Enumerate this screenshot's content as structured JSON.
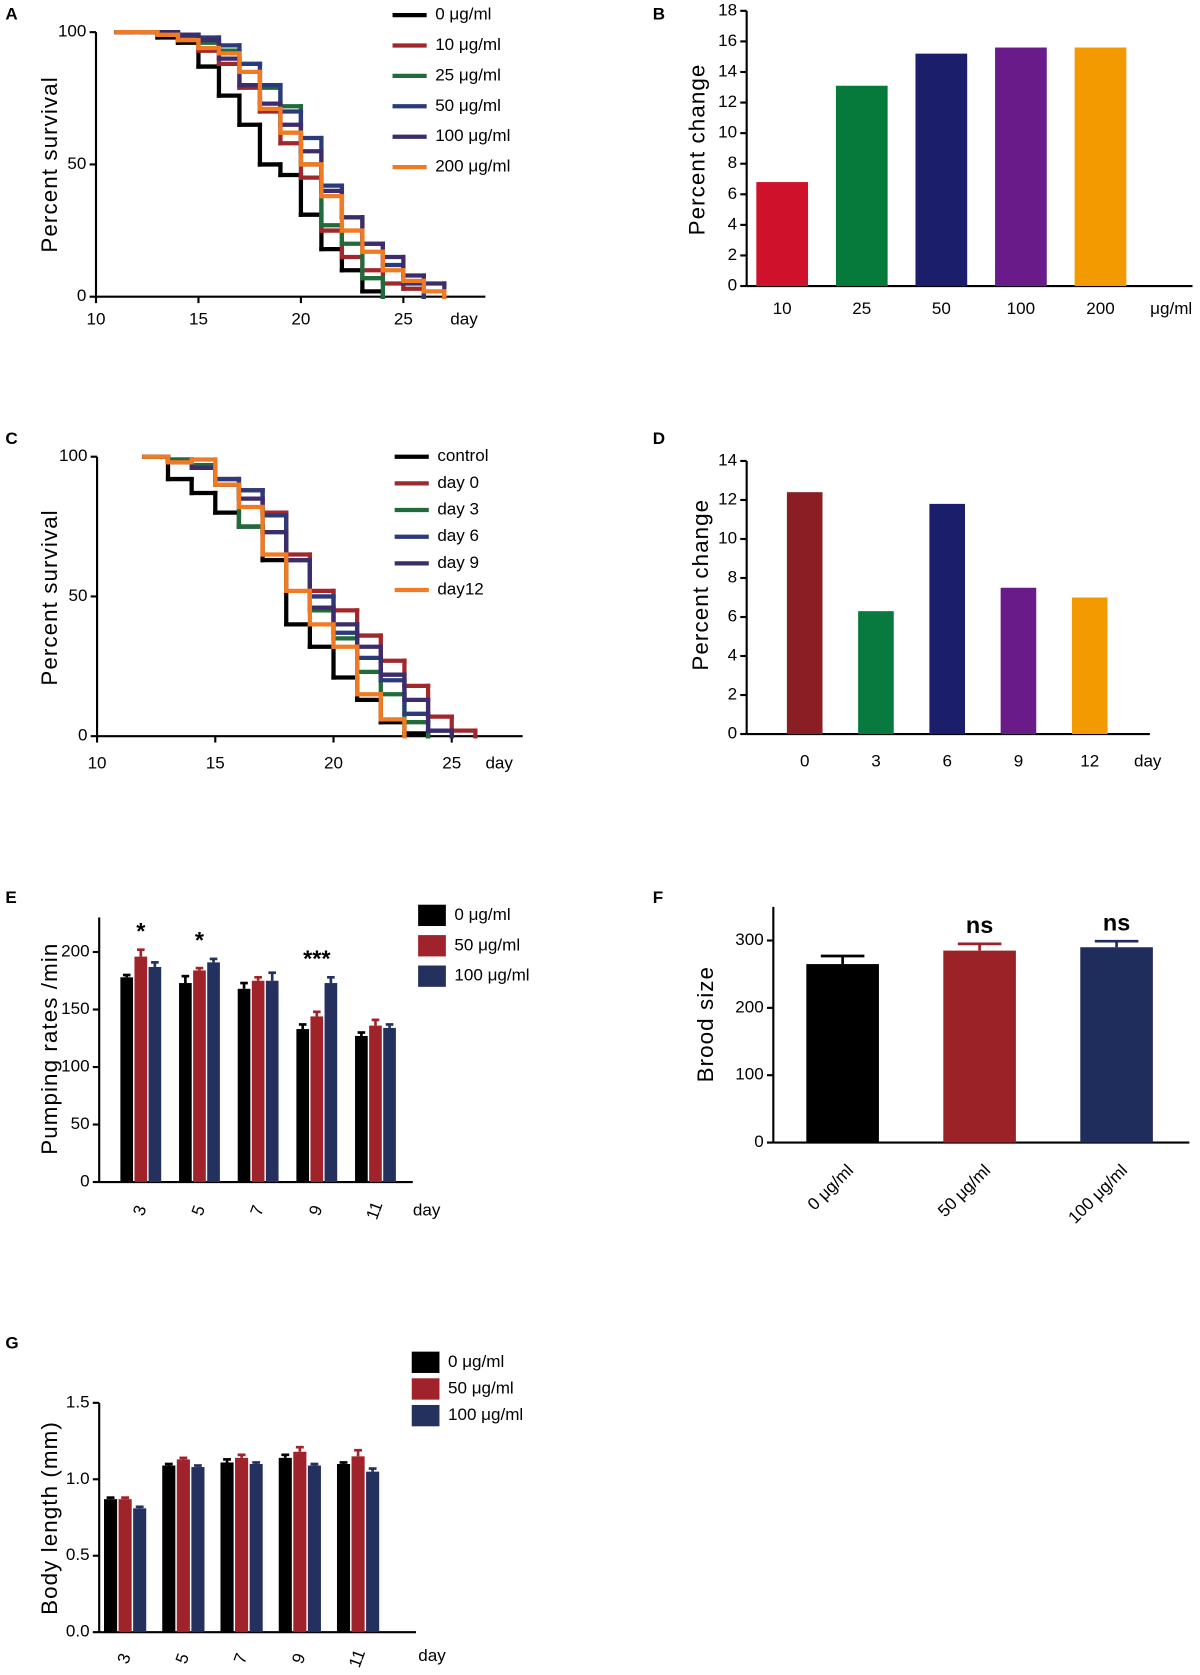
{
  "chart_data": [
    {
      "type": "line",
      "step": true,
      "panel_label": "A",
      "y_label": "Percent survival",
      "x_label": "day",
      "x": [
        11,
        12,
        13,
        14,
        15,
        16,
        17,
        18,
        19,
        20,
        21,
        22,
        23,
        24,
        25,
        26,
        27
      ],
      "xlim": [
        10,
        29
      ],
      "ylim": [
        0,
        100
      ],
      "xticks": [
        10,
        15,
        20,
        25
      ],
      "yticks": [
        0,
        50,
        100
      ],
      "series": [
        {
          "name": "0 μg/ml",
          "color": "#000000",
          "values": [
            100,
            100,
            98,
            96,
            87,
            76,
            65,
            50,
            46,
            31,
            18,
            10,
            2,
            0,
            null,
            null,
            null
          ]
        },
        {
          "name": "10 μg/ml",
          "color": "#a0282c",
          "values": [
            100,
            100,
            99,
            97,
            93,
            88,
            79,
            70,
            58,
            45,
            25,
            15,
            10,
            5,
            3,
            0,
            null
          ]
        },
        {
          "name": "25 μg/ml",
          "color": "#1f6b3a",
          "values": [
            100,
            100,
            99,
            98,
            96,
            93,
            88,
            79,
            72,
            50,
            27,
            20,
            7,
            0,
            null,
            null,
            null
          ]
        },
        {
          "name": "50 μg/ml",
          "color": "#2b3a7a",
          "values": [
            100,
            100,
            100,
            99,
            98,
            95,
            88,
            80,
            70,
            60,
            42,
            30,
            20,
            12,
            5,
            0,
            null
          ]
        },
        {
          "name": "100 μg/ml",
          "color": "#3d2c6b",
          "values": [
            100,
            100,
            100,
            99,
            97,
            90,
            80,
            73,
            65,
            55,
            40,
            30,
            20,
            15,
            8,
            5,
            0
          ]
        },
        {
          "name": "200 μg/ml",
          "color": "#f07b22",
          "values": [
            100,
            100,
            99,
            97,
            94,
            92,
            85,
            71,
            62,
            50,
            38,
            25,
            17,
            10,
            6,
            2,
            0
          ]
        }
      ]
    },
    {
      "type": "bar",
      "panel_label": "B",
      "y_label": "Percent change",
      "x_label": "μg/ml",
      "categories": [
        "10",
        "25",
        "50",
        "100",
        "200"
      ],
      "values": [
        6.8,
        13.1,
        15.2,
        15.6,
        15.6
      ],
      "colors": [
        "#d0112b",
        "#067a3b",
        "#1b1f6b",
        "#6a1b8a",
        "#f39a00"
      ],
      "ylim": [
        0,
        18
      ],
      "yticks": [
        0,
        2,
        4,
        6,
        8,
        10,
        12,
        14,
        16,
        18
      ]
    },
    {
      "type": "line",
      "step": true,
      "panel_label": "C",
      "y_label": "Percent survival",
      "x_label": "day",
      "x": [
        12,
        13,
        14,
        15,
        16,
        17,
        18,
        19,
        20,
        21,
        22,
        23,
        24,
        25,
        26
      ],
      "xlim": [
        10,
        28
      ],
      "ylim": [
        0,
        100
      ],
      "xticks": [
        10,
        15,
        20,
        25
      ],
      "yticks": [
        0,
        50,
        100
      ],
      "series": [
        {
          "name": "control",
          "color": "#000000",
          "values": [
            100,
            92,
            87,
            80,
            75,
            63,
            40,
            32,
            21,
            13,
            5,
            1,
            0,
            null,
            null
          ]
        },
        {
          "name": "day 0",
          "color": "#a0282c",
          "values": [
            100,
            99,
            97,
            92,
            88,
            80,
            65,
            52,
            45,
            36,
            27,
            18,
            7,
            2,
            0
          ]
        },
        {
          "name": "day 3",
          "color": "#1f6b3a",
          "values": [
            100,
            99,
            97,
            90,
            75,
            73,
            63,
            45,
            35,
            23,
            15,
            5,
            0,
            null,
            null
          ]
        },
        {
          "name": "day 6",
          "color": "#2b3a7a",
          "values": [
            100,
            98,
            96,
            92,
            88,
            79,
            63,
            50,
            37,
            28,
            20,
            8,
            2,
            0,
            null
          ]
        },
        {
          "name": "day 9",
          "color": "#3d2c6b",
          "values": [
            100,
            98,
            96,
            90,
            85,
            73,
            63,
            46,
            40,
            32,
            22,
            13,
            2,
            0,
            null
          ]
        },
        {
          "name": "day12",
          "color": "#f07b22",
          "values": [
            100,
            98,
            99,
            90,
            82,
            65,
            52,
            40,
            32,
            15,
            6,
            0,
            null,
            null,
            null
          ]
        }
      ]
    },
    {
      "type": "bar",
      "panel_label": "D",
      "y_label": "Percent change",
      "x_label": "day",
      "categories": [
        "0",
        "3",
        "6",
        "9",
        "12"
      ],
      "values": [
        12.4,
        6.3,
        11.8,
        7.5,
        7.0
      ],
      "colors": [
        "#8b1e24",
        "#087a3f",
        "#1b1f6b",
        "#6a1b8a",
        "#f39a00"
      ],
      "ylim": [
        0,
        14
      ],
      "yticks": [
        0,
        2,
        4,
        6,
        8,
        10,
        12,
        14
      ]
    },
    {
      "type": "bar",
      "panel_label": "E",
      "y_label": "Pumping rates /min",
      "x_label": "day",
      "categories": [
        "3",
        "5",
        "7",
        "9",
        "11"
      ],
      "series": [
        {
          "name": "0 μg/ml",
          "color": "#000000",
          "values": [
            178,
            173,
            168,
            133,
            127
          ],
          "errors": [
            2,
            6,
            5,
            4,
            3
          ]
        },
        {
          "name": "50 μg/ml",
          "color": "#a0222a",
          "values": [
            196,
            184,
            175,
            144,
            136
          ],
          "errors": [
            6,
            2,
            3,
            4,
            5
          ]
        },
        {
          "name": "100 μg/ml",
          "color": "#24305e",
          "values": [
            187,
            191,
            175,
            173,
            134
          ],
          "errors": [
            4,
            3,
            7,
            5,
            3
          ]
        }
      ],
      "annotations": [
        "*",
        "*",
        null,
        "***",
        null
      ],
      "ylim": [
        0,
        230
      ],
      "yticks": [
        0,
        50,
        100,
        150,
        200
      ]
    },
    {
      "type": "bar",
      "panel_label": "F",
      "y_label": "Brood size",
      "categories": [
        "0 μg/ml",
        "50 μg/ml",
        "100 μg/ml"
      ],
      "values": [
        265,
        285,
        290
      ],
      "errors": [
        12,
        10,
        9
      ],
      "colors": [
        "#000000",
        "#9b2226",
        "#1f2d5c"
      ],
      "annotations": [
        null,
        "ns",
        "ns"
      ],
      "ylim": [
        0,
        350
      ],
      "yticks": [
        0,
        100,
        200,
        300
      ]
    },
    {
      "type": "bar",
      "panel_label": "G",
      "y_label": "Body length (mm)",
      "x_label": "day",
      "categories": [
        "3",
        "5",
        "7",
        "9",
        "11"
      ],
      "series": [
        {
          "name": "0 μg/ml",
          "color": "#000000",
          "values": [
            0.87,
            1.09,
            1.11,
            1.14,
            1.1
          ],
          "errors": [
            0.01,
            0.01,
            0.02,
            0.02,
            0.01
          ]
        },
        {
          "name": "50 μg/ml",
          "color": "#a0222a",
          "values": [
            0.87,
            1.13,
            1.14,
            1.18,
            1.15
          ],
          "errors": [
            0.01,
            0.01,
            0.02,
            0.03,
            0.04
          ]
        },
        {
          "name": "100 μg/ml",
          "color": "#24305e",
          "values": [
            0.81,
            1.08,
            1.1,
            1.09,
            1.05
          ],
          "errors": [
            0.01,
            0.01,
            0.01,
            0.01,
            0.02
          ]
        }
      ],
      "ylim": [
        0,
        1.5
      ],
      "yticks": [
        {
          "value": 0,
          "label": "0.0"
        },
        0.5,
        {
          "value": 1,
          "label": "1.0"
        },
        1.5
      ]
    }
  ]
}
